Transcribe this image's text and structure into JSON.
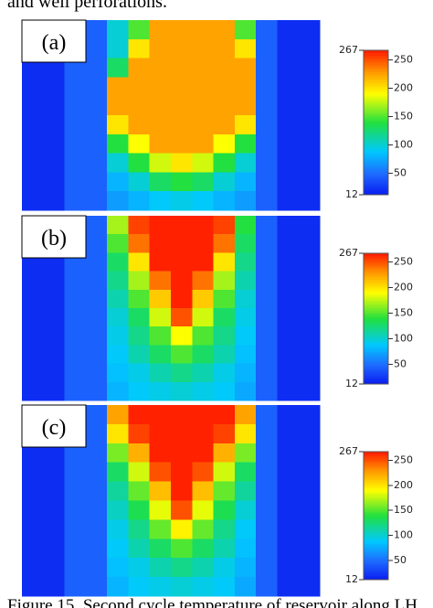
{
  "intro_text": "and well perforations.",
  "caption": "Figure 15.  Second cycle temperature of reservoir along LH",
  "panels": [
    {
      "label": "(a)",
      "colorbar": {
        "range": [
          12,
          267
        ],
        "ticks": [
          250,
          200,
          150,
          100,
          50
        ]
      },
      "grid": [
        [
          20,
          20,
          45,
          45,
          100,
          150,
          225,
          225,
          225,
          225,
          150,
          45,
          20,
          20
        ],
        [
          20,
          20,
          45,
          45,
          100,
          200,
          225,
          225,
          225,
          225,
          200,
          45,
          20,
          20
        ],
        [
          20,
          20,
          45,
          45,
          130,
          225,
          225,
          225,
          225,
          225,
          225,
          45,
          20,
          20
        ],
        [
          20,
          20,
          45,
          45,
          225,
          225,
          225,
          225,
          225,
          225,
          225,
          45,
          20,
          20
        ],
        [
          20,
          20,
          45,
          45,
          225,
          225,
          225,
          225,
          225,
          225,
          225,
          45,
          20,
          20
        ],
        [
          20,
          20,
          45,
          45,
          200,
          225,
          225,
          225,
          225,
          225,
          200,
          45,
          20,
          20
        ],
        [
          20,
          20,
          45,
          45,
          140,
          190,
          225,
          225,
          225,
          190,
          140,
          45,
          20,
          20
        ],
        [
          20,
          20,
          45,
          45,
          100,
          140,
          180,
          200,
          180,
          140,
          100,
          45,
          20,
          20
        ],
        [
          20,
          20,
          45,
          45,
          80,
          100,
          130,
          140,
          130,
          100,
          80,
          45,
          20,
          20
        ],
        [
          20,
          20,
          45,
          45,
          70,
          80,
          90,
          95,
          90,
          80,
          70,
          45,
          20,
          20
        ]
      ]
    },
    {
      "label": "(b)",
      "colorbar": {
        "range": [
          12,
          267
        ],
        "ticks": [
          250,
          200,
          150,
          100,
          50
        ]
      },
      "grid": [
        [
          20,
          20,
          45,
          45,
          170,
          255,
          265,
          265,
          265,
          255,
          140,
          45,
          20,
          20
        ],
        [
          20,
          20,
          45,
          45,
          150,
          240,
          265,
          265,
          265,
          240,
          130,
          45,
          20,
          20
        ],
        [
          20,
          20,
          45,
          45,
          130,
          200,
          265,
          265,
          265,
          200,
          120,
          45,
          20,
          20
        ],
        [
          20,
          20,
          45,
          45,
          120,
          170,
          240,
          265,
          240,
          170,
          110,
          45,
          20,
          20
        ],
        [
          20,
          20,
          45,
          45,
          110,
          150,
          210,
          265,
          210,
          150,
          100,
          45,
          20,
          20
        ],
        [
          20,
          20,
          45,
          45,
          100,
          130,
          180,
          250,
          180,
          130,
          95,
          45,
          20,
          20
        ],
        [
          20,
          20,
          45,
          45,
          95,
          120,
          150,
          190,
          150,
          120,
          90,
          45,
          20,
          20
        ],
        [
          20,
          20,
          45,
          45,
          90,
          110,
          130,
          150,
          130,
          110,
          85,
          45,
          20,
          20
        ],
        [
          20,
          20,
          45,
          45,
          85,
          95,
          110,
          120,
          110,
          95,
          80,
          45,
          20,
          20
        ],
        [
          20,
          20,
          45,
          45,
          80,
          90,
          95,
          100,
          95,
          90,
          75,
          45,
          20,
          20
        ]
      ]
    },
    {
      "label": "(c)",
      "colorbar": {
        "range": [
          12,
          267
        ],
        "ticks": [
          250,
          200,
          150,
          100,
          50
        ]
      },
      "grid": [
        [
          20,
          20,
          45,
          45,
          225,
          265,
          265,
          265,
          265,
          265,
          225,
          45,
          20,
          20
        ],
        [
          20,
          20,
          45,
          45,
          200,
          255,
          265,
          265,
          265,
          255,
          200,
          45,
          20,
          20
        ],
        [
          20,
          20,
          45,
          45,
          160,
          220,
          265,
          265,
          265,
          220,
          160,
          45,
          20,
          20
        ],
        [
          20,
          20,
          45,
          45,
          130,
          180,
          250,
          265,
          250,
          180,
          130,
          45,
          20,
          20
        ],
        [
          20,
          20,
          45,
          45,
          115,
          155,
          215,
          265,
          215,
          155,
          115,
          45,
          20,
          20
        ],
        [
          20,
          20,
          45,
          45,
          105,
          135,
          185,
          250,
          185,
          135,
          100,
          45,
          20,
          20
        ],
        [
          20,
          20,
          45,
          45,
          95,
          120,
          155,
          195,
          155,
          120,
          90,
          45,
          20,
          20
        ],
        [
          20,
          20,
          45,
          45,
          90,
          110,
          130,
          150,
          130,
          110,
          85,
          45,
          20,
          20
        ],
        [
          20,
          20,
          45,
          45,
          85,
          95,
          110,
          120,
          110,
          95,
          80,
          45,
          20,
          20
        ],
        [
          20,
          20,
          45,
          45,
          80,
          90,
          95,
          100,
          95,
          90,
          75,
          45,
          20,
          20
        ]
      ]
    }
  ]
}
